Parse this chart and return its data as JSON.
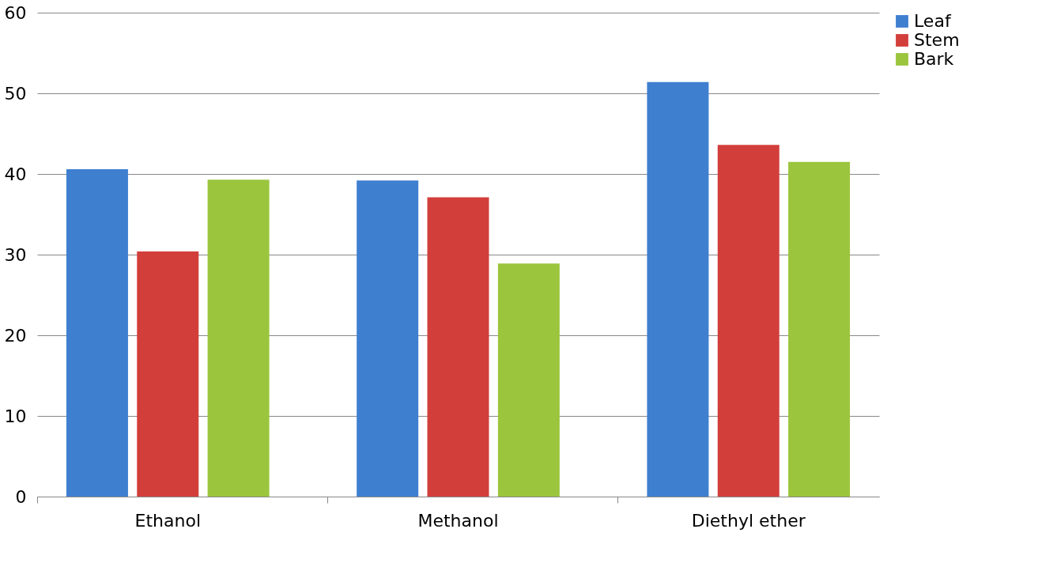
{
  "chart_data": {
    "type": "bar",
    "categories": [
      "Ethanol",
      "Methanol",
      "Diethyl ether"
    ],
    "series": [
      {
        "name": "Leaf",
        "color": "#3f7fd0",
        "values": [
          40.6,
          39.2,
          51.4
        ]
      },
      {
        "name": "Stem",
        "color": "#d23f3b",
        "values": [
          30.4,
          37.1,
          43.6
        ]
      },
      {
        "name": "Bark",
        "color": "#9bc53d",
        "values": [
          39.3,
          28.9,
          41.5
        ]
      }
    ],
    "ylim": [
      0,
      60
    ],
    "yticks": [
      0,
      10,
      20,
      30,
      40,
      50,
      60
    ],
    "grid": "y",
    "legend": "right"
  }
}
